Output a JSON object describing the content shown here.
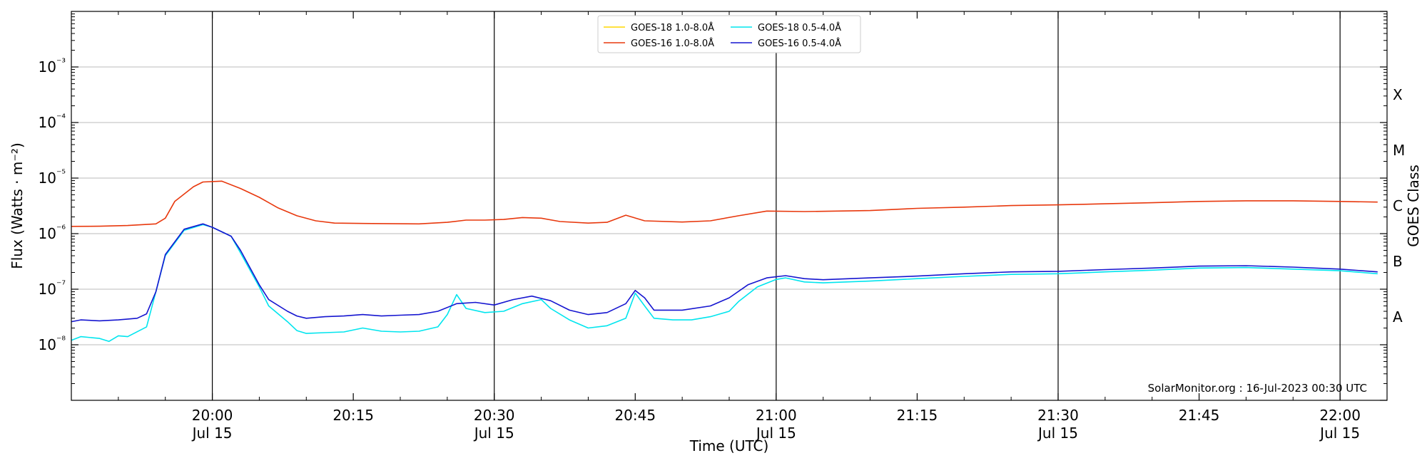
{
  "chart_data": {
    "type": "line",
    "title": "",
    "xlabel": "Time (UTC)",
    "ylabel": "Flux (Watts · m⁻²)",
    "y2label": "GOES Class",
    "yscale": "log",
    "ylim": [
      1e-09,
      0.01
    ],
    "xlim": [
      "19:45",
      "22:05"
    ],
    "grid": "horizontal at decades",
    "legend_position": "top-center",
    "footer": "SolarMonitor.org : 16-Jul-2023 00:30 UTC",
    "y_ticks": [
      {
        "value": 1e-08,
        "label": "10⁻⁸"
      },
      {
        "value": 1e-07,
        "label": "10⁻⁷"
      },
      {
        "value": 1e-06,
        "label": "10⁻⁶"
      },
      {
        "value": 1e-05,
        "label": "10⁻⁵"
      },
      {
        "value": 0.0001,
        "label": "10⁻⁴"
      },
      {
        "value": 0.001,
        "label": "10⁻³"
      }
    ],
    "x_ticks": [
      {
        "time": "20:00",
        "label": "20:00",
        "sublabel": "Jul 15",
        "vline": true
      },
      {
        "time": "20:15",
        "label": "20:15",
        "sublabel": "",
        "vline": false
      },
      {
        "time": "20:30",
        "label": "20:30",
        "sublabel": "Jul 15",
        "vline": true
      },
      {
        "time": "20:45",
        "label": "20:45",
        "sublabel": "",
        "vline": false
      },
      {
        "time": "21:00",
        "label": "21:00",
        "sublabel": "Jul 15",
        "vline": true
      },
      {
        "time": "21:15",
        "label": "21:15",
        "sublabel": "",
        "vline": false
      },
      {
        "time": "21:30",
        "label": "21:30",
        "sublabel": "Jul 15",
        "vline": true
      },
      {
        "time": "21:45",
        "label": "21:45",
        "sublabel": "",
        "vline": false
      },
      {
        "time": "22:00",
        "label": "22:00",
        "sublabel": "Jul 15",
        "vline": true
      }
    ],
    "class_labels": [
      {
        "label": "A",
        "value": 3.162e-08
      },
      {
        "label": "B",
        "value": 3.162e-07
      },
      {
        "label": "C",
        "value": 3.162e-06
      },
      {
        "label": "M",
        "value": 3.162e-05
      },
      {
        "label": "X",
        "value": 0.0003162
      }
    ],
    "series": [
      {
        "name": "GOES-18 1.0-8.0Å",
        "color": "#ffd700",
        "points": []
      },
      {
        "name": "GOES-16 1.0-8.0Å",
        "color": "#e8380d",
        "points": [
          [
            "19:45",
            1.35e-06
          ],
          [
            "19:48",
            1.36e-06
          ],
          [
            "19:51",
            1.4e-06
          ],
          [
            "19:54",
            1.5e-06
          ],
          [
            "19:55",
            1.9e-06
          ],
          [
            "19:56",
            3.8e-06
          ],
          [
            "19:58",
            7e-06
          ],
          [
            "19:59",
            8.5e-06
          ],
          [
            "20:01",
            8.8e-06
          ],
          [
            "20:03",
            6.5e-06
          ],
          [
            "20:05",
            4.5e-06
          ],
          [
            "20:07",
            2.9e-06
          ],
          [
            "20:09",
            2.1e-06
          ],
          [
            "20:11",
            1.7e-06
          ],
          [
            "20:13",
            1.55e-06
          ],
          [
            "20:17",
            1.52e-06
          ],
          [
            "20:22",
            1.5e-06
          ],
          [
            "20:25",
            1.6e-06
          ],
          [
            "20:27",
            1.75e-06
          ],
          [
            "20:29",
            1.75e-06
          ],
          [
            "20:31",
            1.8e-06
          ],
          [
            "20:33",
            1.95e-06
          ],
          [
            "20:35",
            1.9e-06
          ],
          [
            "20:37",
            1.65e-06
          ],
          [
            "20:40",
            1.55e-06
          ],
          [
            "20:42",
            1.6e-06
          ],
          [
            "20:44",
            2.15e-06
          ],
          [
            "20:46",
            1.7e-06
          ],
          [
            "20:50",
            1.62e-06
          ],
          [
            "20:53",
            1.7e-06
          ],
          [
            "20:56",
            2.1e-06
          ],
          [
            "20:59",
            2.55e-06
          ],
          [
            "21:03",
            2.5e-06
          ],
          [
            "21:10",
            2.6e-06
          ],
          [
            "21:15",
            2.85e-06
          ],
          [
            "21:20",
            3e-06
          ],
          [
            "21:25",
            3.2e-06
          ],
          [
            "21:30",
            3.3e-06
          ],
          [
            "21:35",
            3.45e-06
          ],
          [
            "21:40",
            3.6e-06
          ],
          [
            "21:45",
            3.8e-06
          ],
          [
            "21:50",
            3.9e-06
          ],
          [
            "21:55",
            3.9e-06
          ],
          [
            "22:00",
            3.8e-06
          ],
          [
            "22:04",
            3.7e-06
          ]
        ]
      },
      {
        "name": "GOES-18 0.5-4.0Å",
        "color": "#00e5ee",
        "points": [
          [
            "19:45",
            1.2e-08
          ],
          [
            "19:46",
            1.4e-08
          ],
          [
            "19:48",
            1.3e-08
          ],
          [
            "19:49",
            1.15e-08
          ],
          [
            "19:50",
            1.45e-08
          ],
          [
            "19:51",
            1.4e-08
          ],
          [
            "19:53",
            2.1e-08
          ],
          [
            "19:54",
            9e-08
          ],
          [
            "19:55",
            4e-07
          ],
          [
            "19:57",
            1.15e-06
          ],
          [
            "19:59",
            1.45e-06
          ],
          [
            "20:00",
            1.3e-06
          ],
          [
            "20:02",
            9e-07
          ],
          [
            "20:03",
            4.5e-07
          ],
          [
            "20:05",
            1.1e-07
          ],
          [
            "20:06",
            5e-08
          ],
          [
            "20:08",
            2.6e-08
          ],
          [
            "20:09",
            1.8e-08
          ],
          [
            "20:10",
            1.6e-08
          ],
          [
            "20:12",
            1.65e-08
          ],
          [
            "20:14",
            1.7e-08
          ],
          [
            "20:16",
            2e-08
          ],
          [
            "20:18",
            1.75e-08
          ],
          [
            "20:20",
            1.7e-08
          ],
          [
            "20:22",
            1.75e-08
          ],
          [
            "20:24",
            2.1e-08
          ],
          [
            "20:25",
            3.5e-08
          ],
          [
            "20:26",
            8e-08
          ],
          [
            "20:27",
            4.5e-08
          ],
          [
            "20:29",
            3.8e-08
          ],
          [
            "20:31",
            4e-08
          ],
          [
            "20:33",
            5.5e-08
          ],
          [
            "20:35",
            6.5e-08
          ],
          [
            "20:36",
            4.5e-08
          ],
          [
            "20:38",
            2.8e-08
          ],
          [
            "20:40",
            2e-08
          ],
          [
            "20:42",
            2.2e-08
          ],
          [
            "20:44",
            3e-08
          ],
          [
            "20:45",
            8.5e-08
          ],
          [
            "20:46",
            5e-08
          ],
          [
            "20:47",
            3e-08
          ],
          [
            "20:49",
            2.8e-08
          ],
          [
            "20:51",
            2.8e-08
          ],
          [
            "20:53",
            3.2e-08
          ],
          [
            "20:55",
            4e-08
          ],
          [
            "20:56",
            6e-08
          ],
          [
            "20:58",
            1.1e-07
          ],
          [
            "21:00",
            1.5e-07
          ],
          [
            "21:01",
            1.6e-07
          ],
          [
            "21:03",
            1.35e-07
          ],
          [
            "21:05",
            1.3e-07
          ],
          [
            "21:10",
            1.4e-07
          ],
          [
            "21:15",
            1.55e-07
          ],
          [
            "21:20",
            1.7e-07
          ],
          [
            "21:25",
            1.85e-07
          ],
          [
            "21:30",
            1.9e-07
          ],
          [
            "21:35",
            2.05e-07
          ],
          [
            "21:40",
            2.2e-07
          ],
          [
            "21:45",
            2.4e-07
          ],
          [
            "21:50",
            2.45e-07
          ],
          [
            "21:55",
            2.3e-07
          ],
          [
            "22:00",
            2.15e-07
          ],
          [
            "22:04",
            1.9e-07
          ]
        ]
      },
      {
        "name": "GOES-16 0.5-4.0Å",
        "color": "#1515d0",
        "points": [
          [
            "19:45",
            2.6e-08
          ],
          [
            "19:46",
            2.8e-08
          ],
          [
            "19:48",
            2.7e-08
          ],
          [
            "19:50",
            2.8e-08
          ],
          [
            "19:52",
            3e-08
          ],
          [
            "19:53",
            3.6e-08
          ],
          [
            "19:54",
            9e-08
          ],
          [
            "19:55",
            4.2e-07
          ],
          [
            "19:57",
            1.2e-06
          ],
          [
            "19:59",
            1.5e-06
          ],
          [
            "20:00",
            1.3e-06
          ],
          [
            "20:02",
            9e-07
          ],
          [
            "20:03",
            5e-07
          ],
          [
            "20:05",
            1.2e-07
          ],
          [
            "20:06",
            6.5e-08
          ],
          [
            "20:08",
            4e-08
          ],
          [
            "20:09",
            3.3e-08
          ],
          [
            "20:10",
            3e-08
          ],
          [
            "20:12",
            3.2e-08
          ],
          [
            "20:14",
            3.3e-08
          ],
          [
            "20:16",
            3.5e-08
          ],
          [
            "20:18",
            3.3e-08
          ],
          [
            "20:20",
            3.4e-08
          ],
          [
            "20:22",
            3.5e-08
          ],
          [
            "20:24",
            4e-08
          ],
          [
            "20:26",
            5.5e-08
          ],
          [
            "20:28",
            5.8e-08
          ],
          [
            "20:30",
            5.2e-08
          ],
          [
            "20:32",
            6.5e-08
          ],
          [
            "20:34",
            7.5e-08
          ],
          [
            "20:36",
            6.2e-08
          ],
          [
            "20:38",
            4.2e-08
          ],
          [
            "20:40",
            3.5e-08
          ],
          [
            "20:42",
            3.8e-08
          ],
          [
            "20:44",
            5.5e-08
          ],
          [
            "20:45",
            9.5e-08
          ],
          [
            "20:46",
            7e-08
          ],
          [
            "20:47",
            4.2e-08
          ],
          [
            "20:50",
            4.2e-08
          ],
          [
            "20:53",
            5e-08
          ],
          [
            "20:55",
            7e-08
          ],
          [
            "20:57",
            1.2e-07
          ],
          [
            "20:59",
            1.6e-07
          ],
          [
            "21:01",
            1.75e-07
          ],
          [
            "21:03",
            1.55e-07
          ],
          [
            "21:05",
            1.48e-07
          ],
          [
            "21:10",
            1.6e-07
          ],
          [
            "21:15",
            1.72e-07
          ],
          [
            "21:20",
            1.9e-07
          ],
          [
            "21:25",
            2.05e-07
          ],
          [
            "21:30",
            2.1e-07
          ],
          [
            "21:35",
            2.25e-07
          ],
          [
            "21:40",
            2.4e-07
          ],
          [
            "21:45",
            2.6e-07
          ],
          [
            "21:50",
            2.65e-07
          ],
          [
            "21:55",
            2.5e-07
          ],
          [
            "22:00",
            2.3e-07
          ],
          [
            "22:04",
            2.05e-07
          ]
        ]
      }
    ]
  }
}
